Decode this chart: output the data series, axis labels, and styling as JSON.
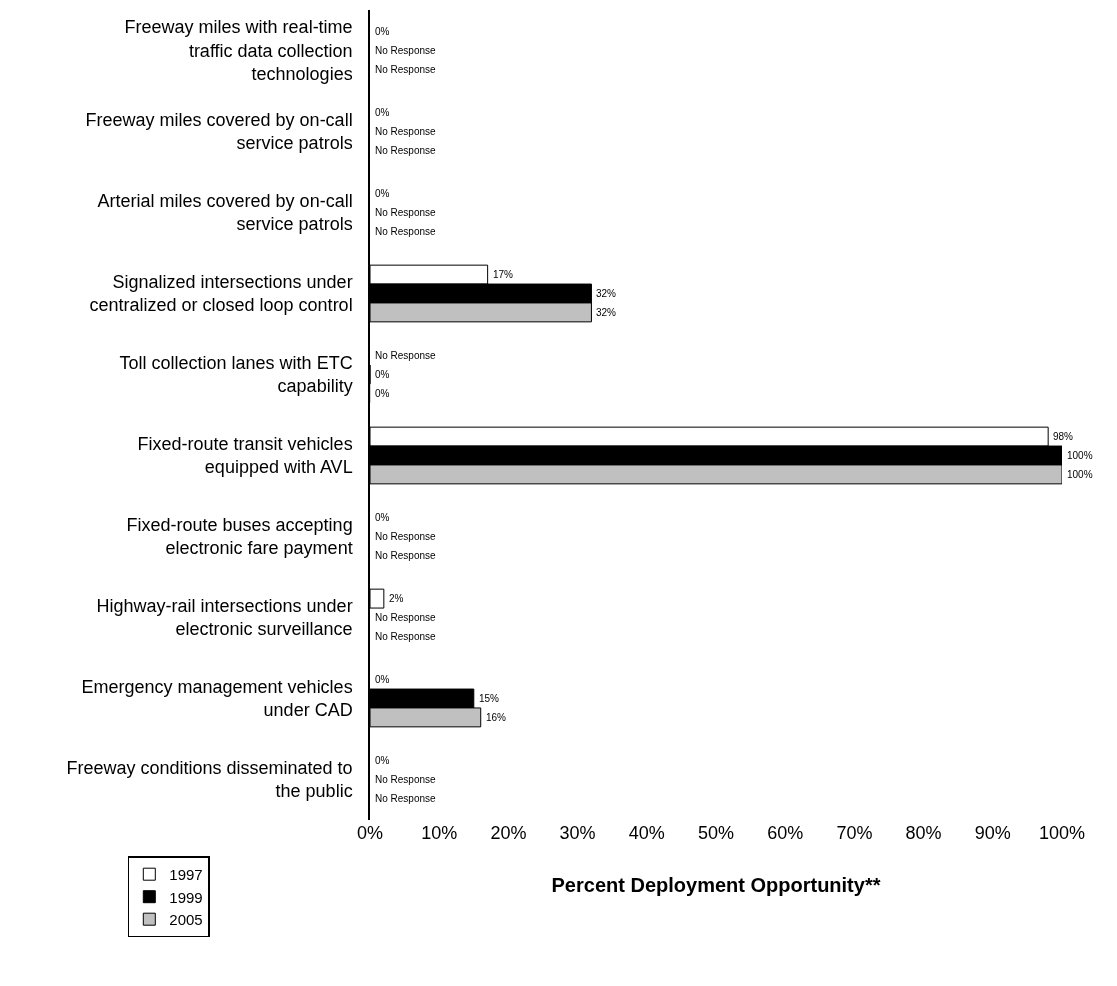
{
  "chart_data": {
    "type": "bar",
    "orientation": "horizontal",
    "xlabel": "Percent Deployment Opportunity**",
    "legend": "bottom left",
    "categories": [
      "Freeway miles with real-time traffic data collection technologies",
      "Freeway miles covered by on-call service patrols",
      "Arterial miles covered by on-call service patrols",
      "Signalized intersections under centralized or closed loop control",
      "Toll collection lanes with ETC capability",
      "Fixed-route transit vehicles equipped with AVL",
      "Fixed-route buses accepting electronic fare payment",
      "Highway-rail intersections under electronic surveillance",
      "Emergency management vehicles under CAD",
      "Freeway conditions disseminated to the public"
    ],
    "xlim": [
      0,
      100
    ],
    "xticks": [
      {
        "value": 0,
        "label": "0%"
      },
      {
        "value": 10,
        "label": "10%"
      },
      {
        "value": 20,
        "label": "20%"
      },
      {
        "value": 30,
        "label": "30%"
      },
      {
        "value": 40,
        "label": "40%"
      },
      {
        "value": 50,
        "label": "50%"
      },
      {
        "value": 60,
        "label": "60%"
      },
      {
        "value": 70,
        "label": "70%"
      },
      {
        "value": 80,
        "label": "80%"
      },
      {
        "value": 90,
        "label": "90%"
      },
      {
        "value": 100,
        "label": "100%"
      }
    ],
    "series": [
      {
        "name": "1997",
        "color": "#ffffff",
        "values": [
          0,
          0,
          0,
          17,
          null,
          98,
          0,
          2,
          0,
          0
        ],
        "value_labels": [
          "0%",
          "0%",
          "0%",
          "17%",
          "No Response",
          "98%",
          "0%",
          "2%",
          "0%",
          "0%"
        ]
      },
      {
        "name": "1999",
        "color": "#000000",
        "values": [
          null,
          null,
          null,
          32,
          0,
          100,
          null,
          null,
          15,
          null
        ],
        "value_labels": [
          "No Response",
          "No Response",
          "No Response",
          "32%",
          "0%",
          "100%",
          "No Response",
          "No Response",
          "15%",
          "No Response"
        ]
      },
      {
        "name": "2005",
        "color": "#c0c0c0",
        "values": [
          null,
          null,
          null,
          32,
          0,
          100,
          null,
          null,
          16,
          null
        ],
        "value_labels": [
          "No Response",
          "No Response",
          "No Response",
          "32%",
          "0%",
          "100%",
          "No Response",
          "No Response",
          "16%",
          "No Response"
        ]
      }
    ]
  }
}
